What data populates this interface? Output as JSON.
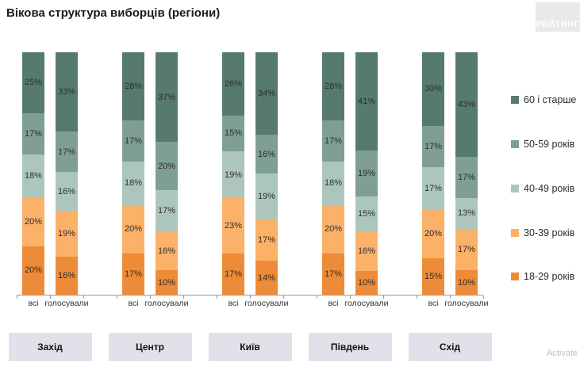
{
  "title": "Вікова структура виборців (регіони)",
  "logo": "РЕЙТИНГ",
  "watermark": "Activate",
  "legend": [
    {
      "label": "60 і старше",
      "color": "#567b6e"
    },
    {
      "label": "50-59 років",
      "color": "#7f9f94"
    },
    {
      "label": "40-49 років",
      "color": "#adc6bc"
    },
    {
      "label": "30-39 років",
      "color": "#fbb168"
    },
    {
      "label": "18-29 років",
      "color": "#ee8b38"
    }
  ],
  "chart_data": {
    "type": "bar",
    "subtype": "stacked-100-percent",
    "title": "Вікова структура виборців (регіони)",
    "categories": [
      "Захід",
      "Центр",
      "Київ",
      "Південь",
      "Схід"
    ],
    "bars_per_category": [
      "всі",
      "голосували"
    ],
    "stack_order_top_to_bottom": [
      "60 і старше",
      "50-59 років",
      "40-49 років",
      "30-39 років",
      "18-29 років"
    ],
    "legend_position": "right",
    "grid": false,
    "groups": [
      {
        "region": "Захід",
        "bars": [
          {
            "label": "всі",
            "values": [
              25,
              17,
              18,
              20,
              20
            ]
          },
          {
            "label": "голосували",
            "values": [
              33,
              17,
              16,
              19,
              16
            ]
          }
        ]
      },
      {
        "region": "Центр",
        "bars": [
          {
            "label": "всі",
            "values": [
              28,
              17,
              18,
              20,
              17
            ]
          },
          {
            "label": "голосували",
            "values": [
              37,
              20,
              17,
              16,
              10
            ]
          }
        ]
      },
      {
        "region": "Київ",
        "bars": [
          {
            "label": "всі",
            "values": [
              26,
              15,
              19,
              23,
              17
            ]
          },
          {
            "label": "голосували",
            "values": [
              34,
              16,
              19,
              17,
              14
            ]
          }
        ]
      },
      {
        "region": "Південь",
        "bars": [
          {
            "label": "всі",
            "values": [
              28,
              17,
              18,
              20,
              17
            ]
          },
          {
            "label": "голосували",
            "values": [
              41,
              19,
              15,
              16,
              10
            ]
          }
        ]
      },
      {
        "region": "Схід",
        "bars": [
          {
            "label": "всі",
            "values": [
              30,
              17,
              17,
              20,
              15
            ]
          },
          {
            "label": "голосували",
            "values": [
              43,
              17,
              13,
              17,
              10
            ]
          }
        ]
      }
    ]
  }
}
